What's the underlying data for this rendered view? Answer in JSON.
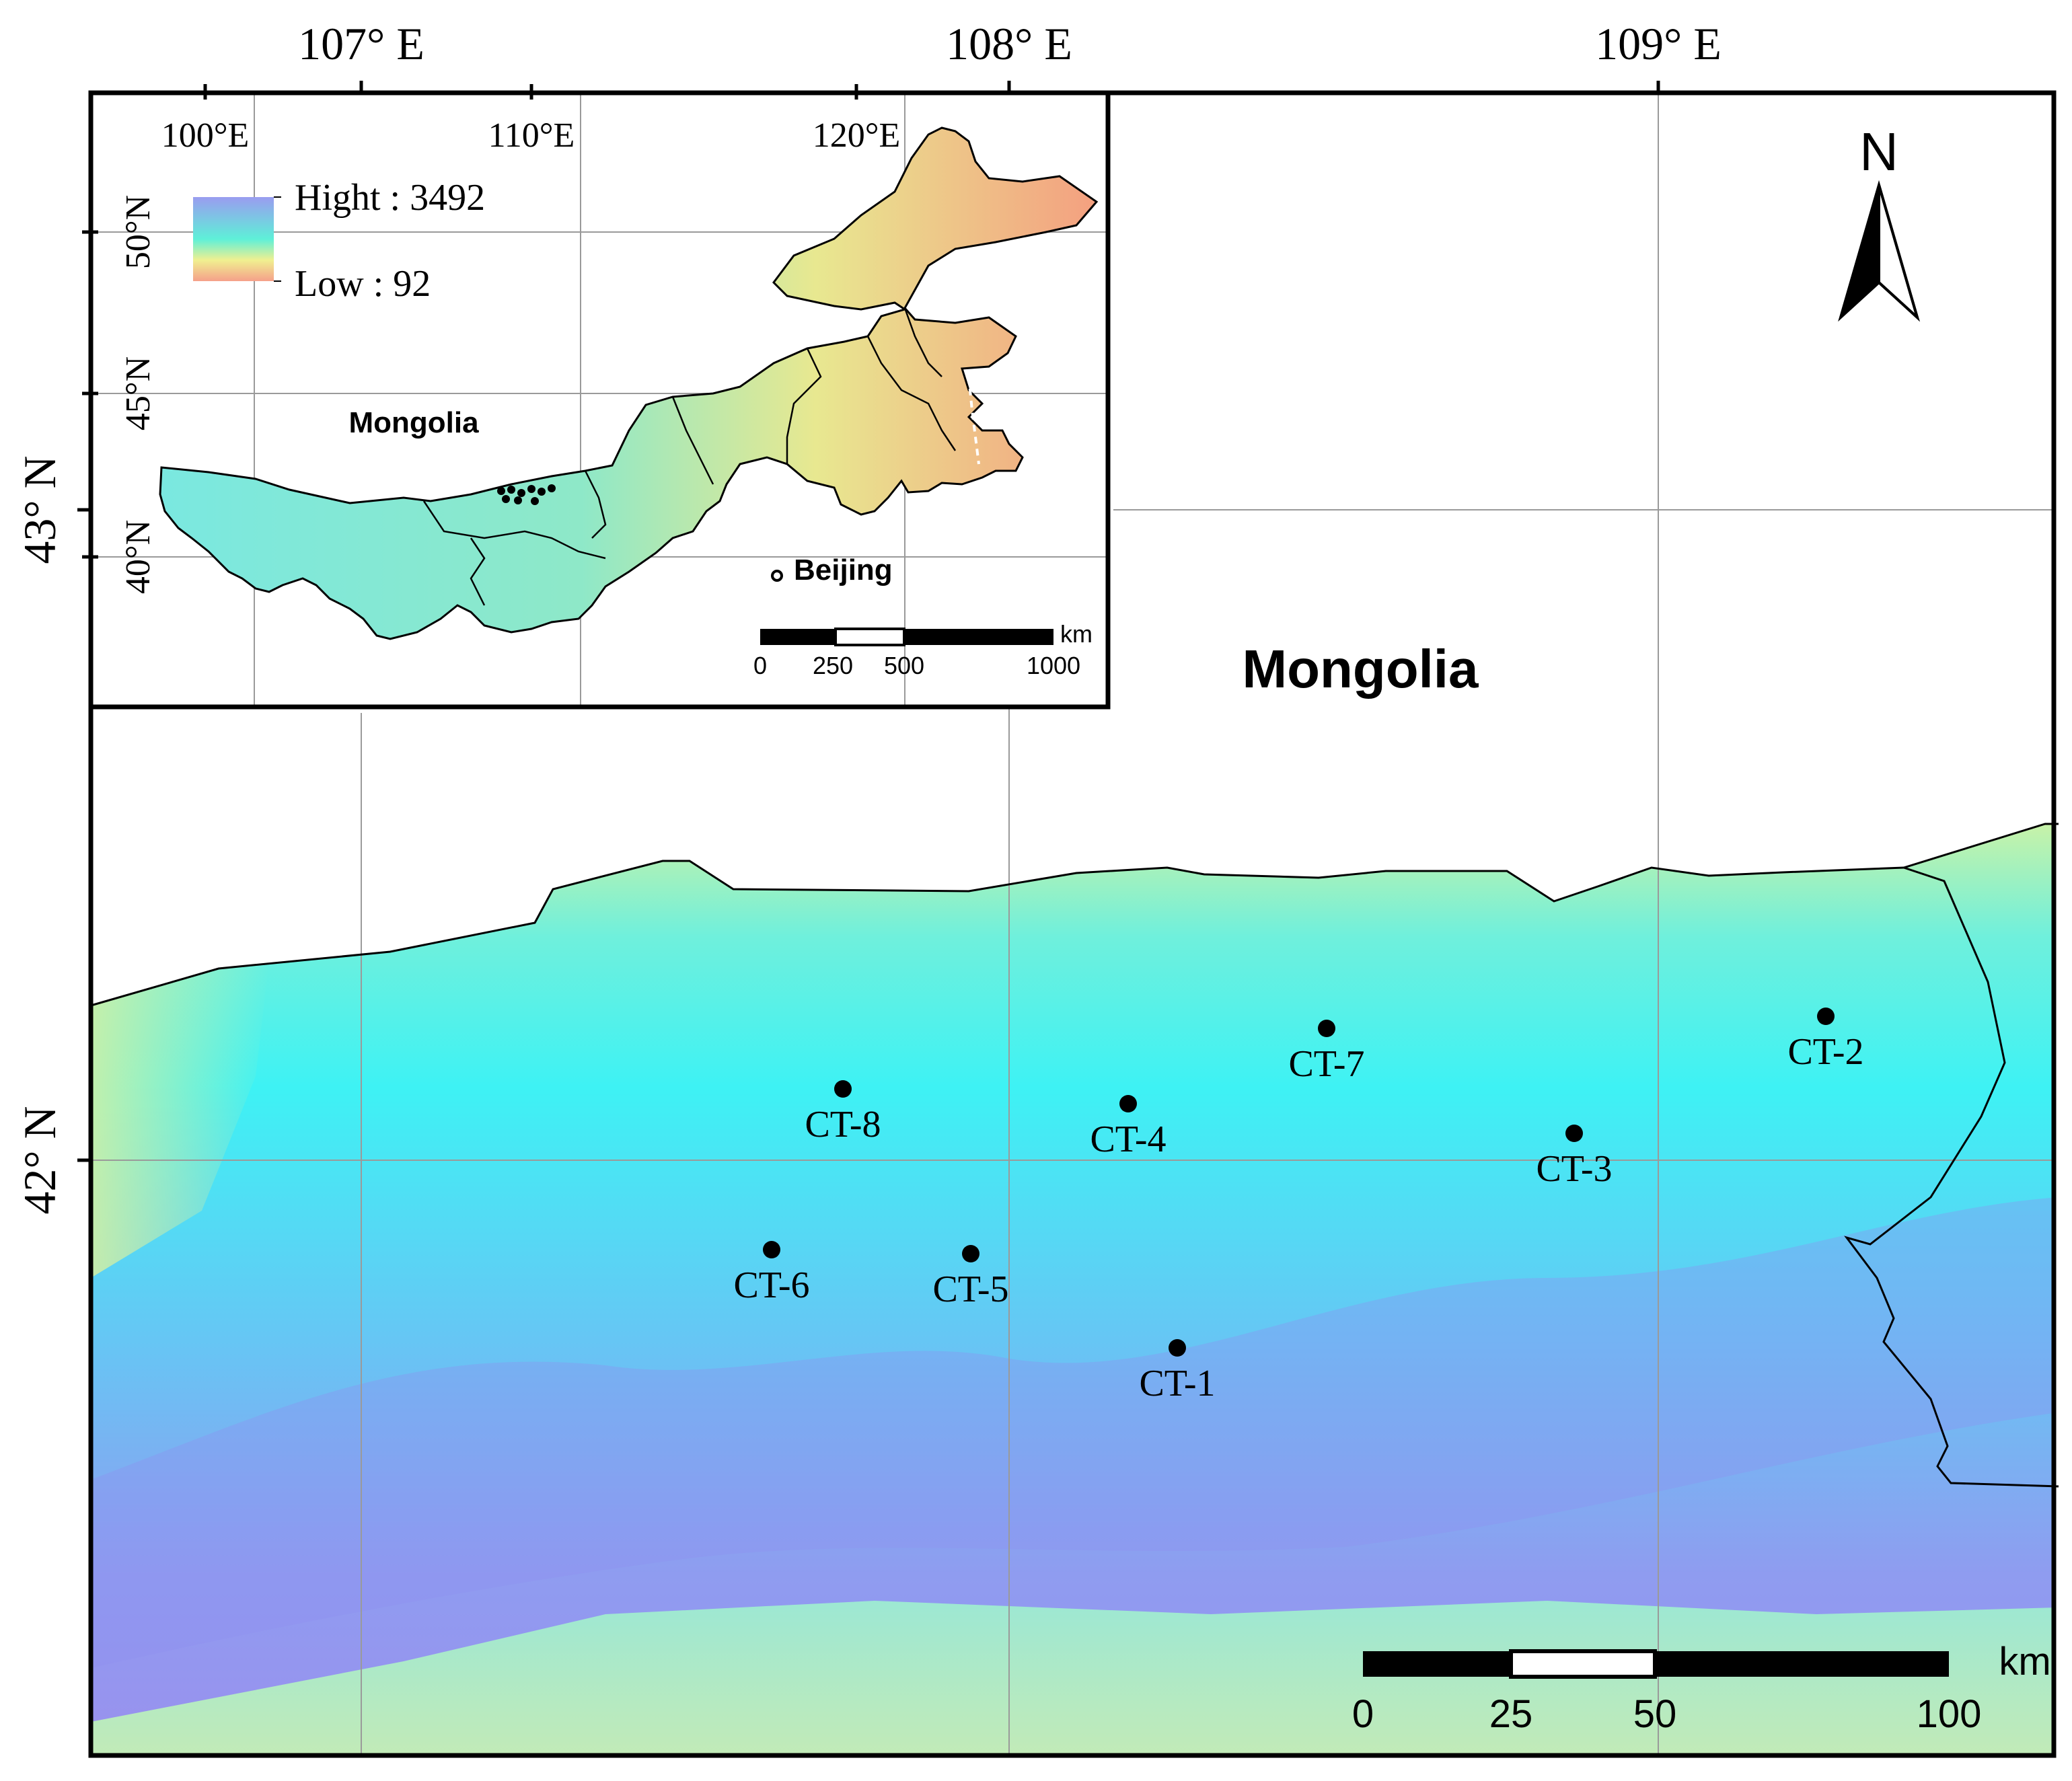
{
  "main_map": {
    "longitude_labels": [
      "107° E",
      "108° E",
      "109° E"
    ],
    "latitude_labels": [
      "43° N",
      "42° N"
    ],
    "country_label": "Mongolia",
    "north_label": "N",
    "sites": [
      {
        "id": "CT-1",
        "label": "CT-1"
      },
      {
        "id": "CT-2",
        "label": "CT-2"
      },
      {
        "id": "CT-3",
        "label": "CT-3"
      },
      {
        "id": "CT-4",
        "label": "CT-4"
      },
      {
        "id": "CT-5",
        "label": "CT-5"
      },
      {
        "id": "CT-6",
        "label": "CT-6"
      },
      {
        "id": "CT-7",
        "label": "CT-7"
      },
      {
        "id": "CT-8",
        "label": "CT-8"
      }
    ],
    "scale_bar": {
      "unit": "km",
      "ticks": [
        "0",
        "25",
        "50",
        "100"
      ]
    },
    "colors": {
      "low_elevation": "#c8f5b0",
      "mid_elevation": "#4af0f0",
      "high_elevation": "#9a90f0"
    }
  },
  "inset_map": {
    "longitude_labels": [
      "100°E",
      "110°E",
      "120°E"
    ],
    "latitude_labels": [
      "50°N",
      "45°N",
      "40°N"
    ],
    "legend": {
      "high": "Hight : 3492",
      "low": "Low : 92"
    },
    "mongolia_label": "Mongolia",
    "beijing_label": "Beijing",
    "scale_bar": {
      "unit": "km",
      "ticks": [
        "0",
        "250",
        "500",
        "1000"
      ]
    },
    "colors": {
      "high": "#9a9cf0",
      "mid": "#5ef0d8",
      "low": "#f5a08a"
    }
  }
}
